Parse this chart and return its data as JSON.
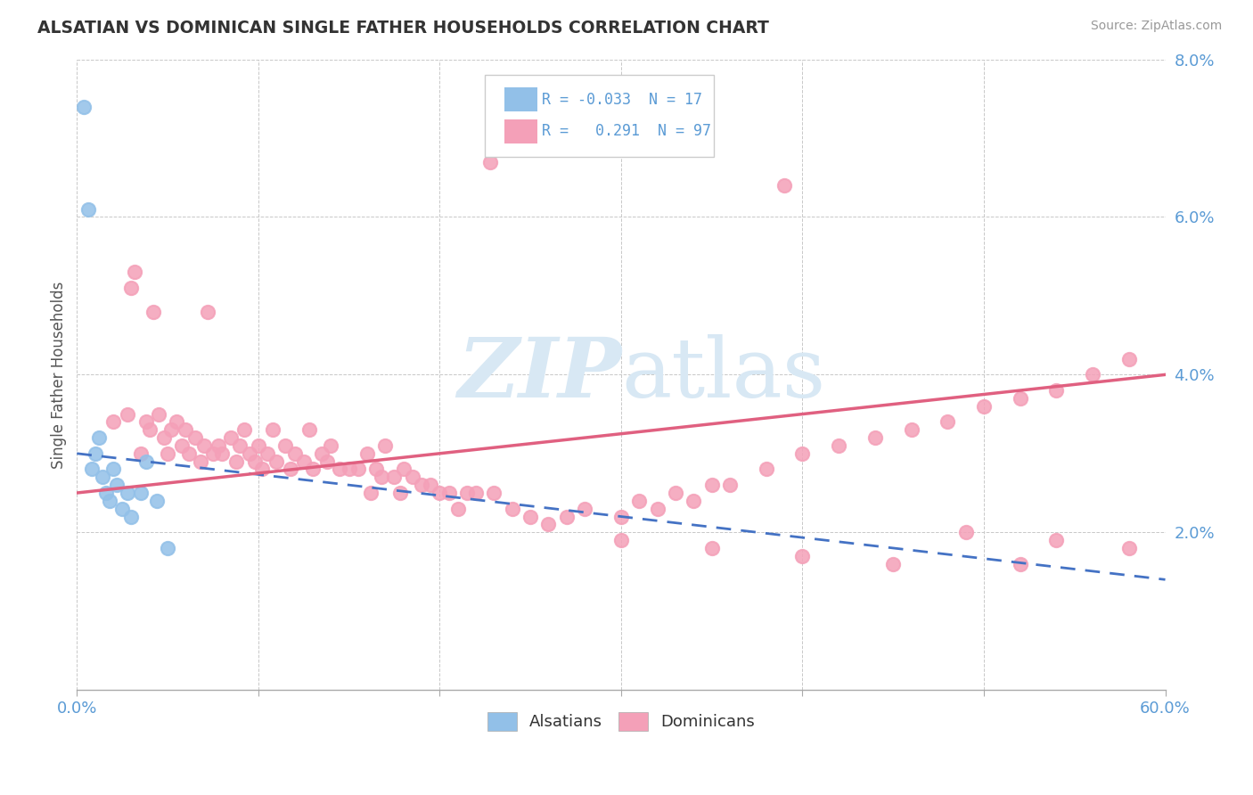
{
  "title": "ALSATIAN VS DOMINICAN SINGLE FATHER HOUSEHOLDS CORRELATION CHART",
  "source": "Source: ZipAtlas.com",
  "ylabel": "Single Father Households",
  "xlim": [
    0,
    0.6
  ],
  "ylim": [
    0,
    0.08
  ],
  "xticks": [
    0.0,
    0.1,
    0.2,
    0.3,
    0.4,
    0.5,
    0.6
  ],
  "yticks": [
    0.0,
    0.02,
    0.04,
    0.06,
    0.08
  ],
  "xticklabels": [
    "0.0%",
    "",
    "",
    "",
    "",
    "",
    "60.0%"
  ],
  "yticklabels": [
    "",
    "2.0%",
    "4.0%",
    "6.0%",
    "8.0%"
  ],
  "alsatian_color": "#92C0E8",
  "dominican_color": "#F4A0B8",
  "alsatian_line_color": "#4472C4",
  "dominican_line_color": "#E06080",
  "tick_color": "#5B9BD5",
  "watermark_color": "#D8E8F4",
  "als_x": [
    0.004,
    0.006,
    0.008,
    0.01,
    0.012,
    0.014,
    0.016,
    0.018,
    0.02,
    0.022,
    0.025,
    0.028,
    0.03,
    0.035,
    0.038,
    0.044,
    0.05
  ],
  "als_y": [
    0.074,
    0.061,
    0.028,
    0.03,
    0.032,
    0.027,
    0.025,
    0.024,
    0.028,
    0.026,
    0.023,
    0.025,
    0.022,
    0.025,
    0.029,
    0.024,
    0.018
  ],
  "dom_x": [
    0.02,
    0.028,
    0.03,
    0.032,
    0.035,
    0.038,
    0.04,
    0.042,
    0.045,
    0.048,
    0.05,
    0.052,
    0.055,
    0.058,
    0.06,
    0.062,
    0.065,
    0.068,
    0.07,
    0.072,
    0.075,
    0.078,
    0.08,
    0.085,
    0.088,
    0.09,
    0.092,
    0.095,
    0.098,
    0.1,
    0.102,
    0.105,
    0.108,
    0.11,
    0.115,
    0.118,
    0.12,
    0.125,
    0.128,
    0.13,
    0.135,
    0.138,
    0.14,
    0.145,
    0.15,
    0.155,
    0.16,
    0.162,
    0.165,
    0.168,
    0.17,
    0.175,
    0.178,
    0.18,
    0.185,
    0.19,
    0.195,
    0.2,
    0.205,
    0.21,
    0.215,
    0.22,
    0.23,
    0.24,
    0.25,
    0.26,
    0.27,
    0.28,
    0.3,
    0.31,
    0.32,
    0.33,
    0.34,
    0.35,
    0.36,
    0.38,
    0.4,
    0.42,
    0.44,
    0.46,
    0.48,
    0.5,
    0.52,
    0.54,
    0.56,
    0.58,
    0.228,
    0.245,
    0.39,
    0.52,
    0.3,
    0.35,
    0.4,
    0.45,
    0.49,
    0.54,
    0.58
  ],
  "dom_y": [
    0.034,
    0.035,
    0.051,
    0.053,
    0.03,
    0.034,
    0.033,
    0.048,
    0.035,
    0.032,
    0.03,
    0.033,
    0.034,
    0.031,
    0.033,
    0.03,
    0.032,
    0.029,
    0.031,
    0.048,
    0.03,
    0.031,
    0.03,
    0.032,
    0.029,
    0.031,
    0.033,
    0.03,
    0.029,
    0.031,
    0.028,
    0.03,
    0.033,
    0.029,
    0.031,
    0.028,
    0.03,
    0.029,
    0.033,
    0.028,
    0.03,
    0.029,
    0.031,
    0.028,
    0.028,
    0.028,
    0.03,
    0.025,
    0.028,
    0.027,
    0.031,
    0.027,
    0.025,
    0.028,
    0.027,
    0.026,
    0.026,
    0.025,
    0.025,
    0.023,
    0.025,
    0.025,
    0.025,
    0.023,
    0.022,
    0.021,
    0.022,
    0.023,
    0.022,
    0.024,
    0.023,
    0.025,
    0.024,
    0.026,
    0.026,
    0.028,
    0.03,
    0.031,
    0.032,
    0.033,
    0.034,
    0.036,
    0.037,
    0.038,
    0.04,
    0.042,
    0.067,
    0.069,
    0.064,
    0.016,
    0.019,
    0.018,
    0.017,
    0.016,
    0.02,
    0.019,
    0.018
  ],
  "als_line_x0": 0.0,
  "als_line_x1": 0.6,
  "als_line_y0": 0.03,
  "als_line_y1": 0.014,
  "dom_line_x0": 0.0,
  "dom_line_x1": 0.6,
  "dom_line_y0": 0.025,
  "dom_line_y1": 0.04
}
